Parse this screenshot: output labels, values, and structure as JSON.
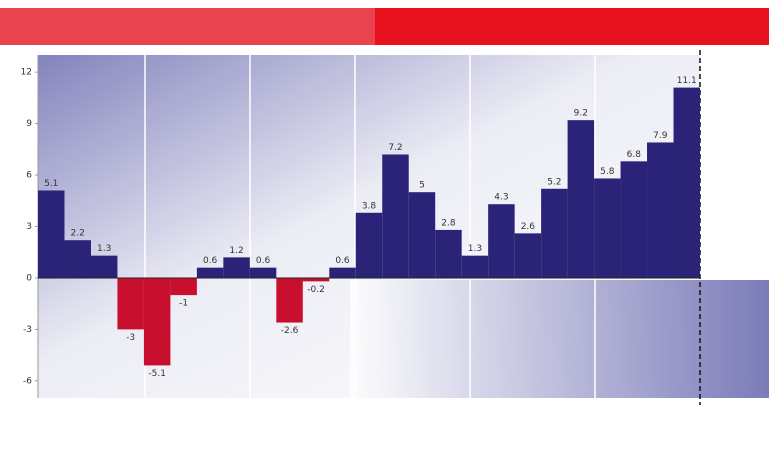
{
  "chart_data": {
    "type": "bar",
    "values": [
      5.1,
      2.2,
      1.3,
      -3.0,
      -5.1,
      -1.0,
      0.6,
      1.2,
      0.6,
      -2.6,
      -0.2,
      0.6,
      3.8,
      7.2,
      5.0,
      2.8,
      1.3,
      4.3,
      2.6,
      5.2,
      9.2,
      5.8,
      6.8,
      7.9,
      11.1
    ],
    "positive_color": "#2a2377",
    "negative_color": "#c8102e",
    "ylim": [
      -7,
      13
    ],
    "yticks": [
      -6,
      -3,
      0,
      3,
      6,
      9,
      12
    ]
  }
}
